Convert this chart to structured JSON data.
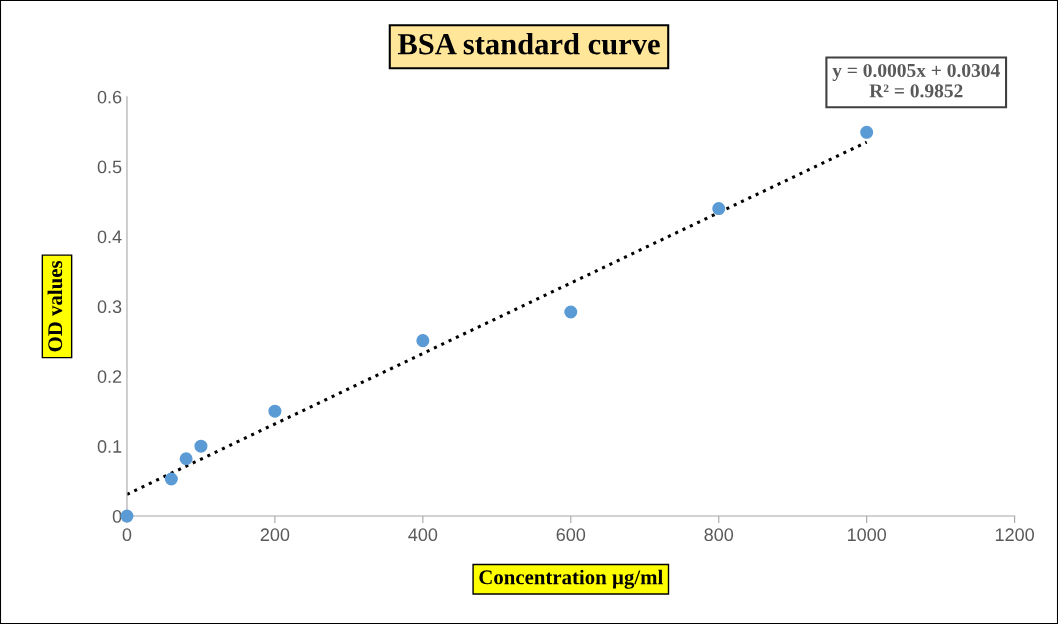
{
  "chart_data": {
    "type": "scatter",
    "title": "BSA standard curve",
    "xlabel": "Concentration µg/ml",
    "ylabel": "OD values",
    "annotations": [
      "y = 0.0005x + 0.0304\nR² = 0.9852"
    ],
    "series": [
      {
        "color": "#5b9bd5",
        "marker": "circle",
        "x": [
          0,
          60,
          80,
          100,
          200,
          400,
          600,
          800,
          1000
        ],
        "values": [
          0,
          0.053,
          0.082,
          0.1,
          0.15,
          0.251,
          0.292,
          0.44,
          0.549
        ]
      },
      {
        "type": "line",
        "color": "#000000",
        "marker": "none",
        "line_style": "dotted",
        "x": [
          0,
          1000
        ],
        "values": [
          0.031,
          0.535
        ]
      }
    ],
    "xlim": [
      0,
      1200
    ],
    "xticks": [
      0,
      200,
      400,
      600,
      800,
      1000,
      1200
    ],
    "ylim": [
      0,
      0.6
    ],
    "yticks": [
      0,
      0.1,
      0.2,
      0.3,
      0.4,
      0.5,
      0.6
    ],
    "grid": false,
    "legend": false
  }
}
